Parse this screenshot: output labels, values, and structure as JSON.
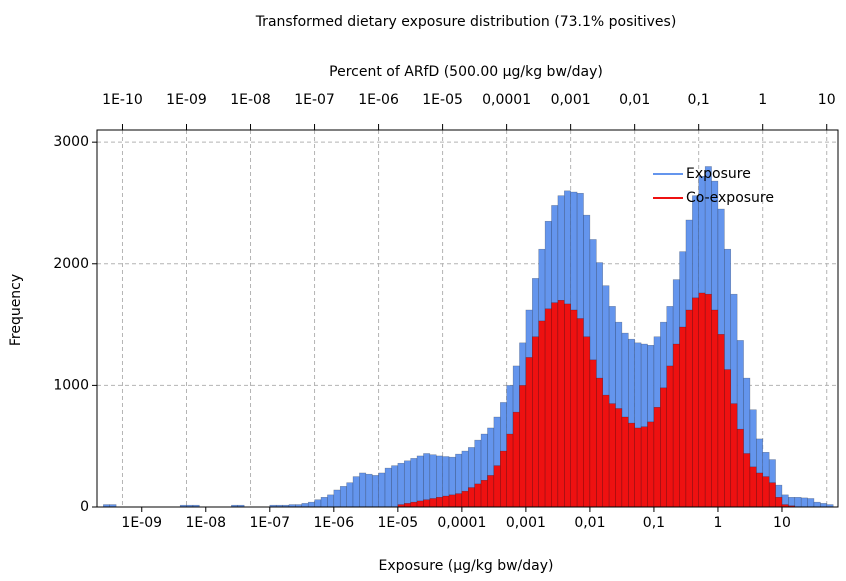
{
  "chart_data": {
    "type": "histogram",
    "title": "Transformed dietary exposure distribution (73.1% positives)",
    "xlabel": "Exposure (µg/kg bw/day)",
    "x2label": "Percent of ARfD (500.00 µg/kg bw/day)",
    "ylabel": "Frequency",
    "xscale": "log",
    "x2scale": "log",
    "xlim": [
      2e-10,
      75
    ],
    "x2lim": [
      4e-11,
      15
    ],
    "ylim": [
      0,
      3100
    ],
    "xticks": [
      {
        "value": 1e-09,
        "label": "1E-09"
      },
      {
        "value": 1e-08,
        "label": "1E-08"
      },
      {
        "value": 1e-07,
        "label": "1E-07"
      },
      {
        "value": 1e-06,
        "label": "1E-06"
      },
      {
        "value": 1e-05,
        "label": "1E-05"
      },
      {
        "value": 0.0001,
        "label": "0,0001"
      },
      {
        "value": 0.001,
        "label": "0,001"
      },
      {
        "value": 0.01,
        "label": "0,01"
      },
      {
        "value": 0.1,
        "label": "0,1"
      },
      1,
      10
    ],
    "x2ticks": [
      {
        "value": 1e-10,
        "label": "1E-10"
      },
      {
        "value": 1e-09,
        "label": "1E-09"
      },
      {
        "value": 1e-08,
        "label": "1E-08"
      },
      {
        "value": 1e-07,
        "label": "1E-07"
      },
      {
        "value": 1e-06,
        "label": "1E-06"
      },
      {
        "value": 1e-05,
        "label": "1E-05"
      },
      {
        "value": 0.0001,
        "label": "0,0001"
      },
      {
        "value": 0.001,
        "label": "0,001"
      },
      {
        "value": 0.01,
        "label": "0,01"
      },
      {
        "value": 0.1,
        "label": "0,1"
      },
      1,
      10
    ],
    "yticks": [
      0,
      1000,
      2000,
      3000
    ],
    "grid": true,
    "legend": "upper right",
    "bins": [
      2.512e-10,
      3.162e-10,
      3.981e-10,
      5.012e-10,
      6.31e-10,
      7.943e-10,
      1e-09,
      1.259e-09,
      1.585e-09,
      1.995e-09,
      2.512e-09,
      3.162e-09,
      3.981e-09,
      5.012e-09,
      6.31e-09,
      7.943e-09,
      1e-08,
      1.259e-08,
      1.585e-08,
      1.995e-08,
      2.512e-08,
      3.162e-08,
      3.981e-08,
      5.012e-08,
      6.31e-08,
      7.943e-08,
      1e-07,
      1.259e-07,
      1.585e-07,
      1.995e-07,
      2.512e-07,
      3.162e-07,
      3.981e-07,
      5.012e-07,
      6.31e-07,
      7.943e-07,
      1e-06,
      1.259e-06,
      1.585e-06,
      1.995e-06,
      2.512e-06,
      3.162e-06,
      3.981e-06,
      5.012e-06,
      6.31e-06,
      7.943e-06,
      1e-05,
      1.259e-05,
      1.585e-05,
      1.995e-05,
      2.512e-05,
      3.162e-05,
      3.981e-05,
      5.012e-05,
      6.31e-05,
      7.943e-05,
      0.0001,
      0.0001259,
      0.0001585,
      0.0001995,
      0.0002512,
      0.0003162,
      0.0003981,
      0.0005012,
      0.000631,
      0.0007943,
      0.001,
      0.001259,
      0.001585,
      0.001995,
      0.002512,
      0.003162,
      0.003981,
      0.005012,
      0.00631,
      0.007943,
      0.01,
      0.01259,
      0.01585,
      0.01995,
      0.02512,
      0.03162,
      0.03981,
      0.05012,
      0.0631,
      0.07943,
      0.1,
      0.1259,
      0.1585,
      0.1995,
      0.2512,
      0.3162,
      0.3981,
      0.5012,
      0.631,
      0.7943,
      1,
      1.259,
      1.585,
      1.995,
      2.512,
      3.162,
      3.981,
      5.012,
      6.31,
      7.943,
      10,
      12.59,
      15.85,
      19.95,
      25.12,
      31.62,
      39.81,
      50.12,
      63.1
    ],
    "series": [
      {
        "name": "Exposure",
        "color": "#6495ed",
        "values": [
          20,
          20,
          0,
          0,
          0,
          0,
          0,
          0,
          0,
          0,
          0,
          0,
          15,
          15,
          15,
          0,
          0,
          0,
          0,
          0,
          15,
          15,
          0,
          0,
          0,
          0,
          15,
          15,
          15,
          20,
          20,
          30,
          40,
          60,
          80,
          100,
          140,
          170,
          200,
          250,
          280,
          270,
          260,
          280,
          320,
          340,
          360,
          380,
          400,
          420,
          440,
          430,
          420,
          415,
          410,
          435,
          460,
          490,
          550,
          600,
          650,
          740,
          860,
          1000,
          1160,
          1350,
          1620,
          1880,
          2120,
          2350,
          2480,
          2560,
          2600,
          2590,
          2580,
          2400,
          2200,
          2010,
          1820,
          1650,
          1520,
          1430,
          1380,
          1350,
          1340,
          1330,
          1400,
          1520,
          1650,
          1870,
          2100,
          2360,
          2560,
          2720,
          2800,
          2680,
          2450,
          2120,
          1750,
          1370,
          1060,
          800,
          560,
          450,
          390,
          180,
          100,
          80,
          80,
          75,
          70,
          40,
          30,
          20
        ]
      },
      {
        "name": "Co-exposure",
        "color": "#ee1111",
        "values": [
          0,
          0,
          0,
          0,
          0,
          0,
          0,
          0,
          0,
          0,
          0,
          0,
          0,
          0,
          0,
          0,
          0,
          0,
          0,
          0,
          0,
          0,
          0,
          0,
          0,
          0,
          0,
          0,
          0,
          0,
          0,
          0,
          0,
          0,
          0,
          0,
          0,
          0,
          0,
          0,
          0,
          0,
          0,
          0,
          0,
          0,
          20,
          30,
          40,
          50,
          60,
          70,
          80,
          90,
          100,
          110,
          130,
          160,
          190,
          220,
          260,
          340,
          460,
          600,
          780,
          1000,
          1230,
          1400,
          1530,
          1630,
          1680,
          1700,
          1670,
          1620,
          1550,
          1400,
          1210,
          1060,
          920,
          850,
          810,
          740,
          690,
          650,
          660,
          700,
          820,
          980,
          1160,
          1340,
          1480,
          1620,
          1720,
          1760,
          1750,
          1620,
          1420,
          1130,
          850,
          640,
          440,
          330,
          280,
          250,
          200,
          80,
          20,
          10,
          0,
          0,
          0,
          0,
          0,
          0
        ]
      }
    ]
  }
}
